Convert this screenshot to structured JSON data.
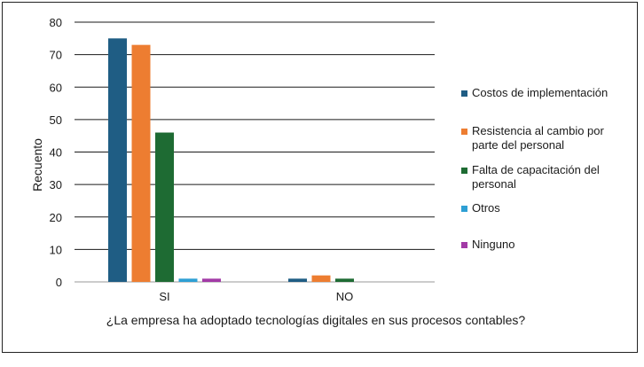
{
  "chart_data": {
    "type": "bar",
    "categories": [
      "SI",
      "NO"
    ],
    "series": [
      {
        "name": "Costos de implementación",
        "color": "#1f5d84",
        "values": [
          75,
          1
        ]
      },
      {
        "name": "Resistencia al cambio por parte del personal",
        "color": "#ed7d31",
        "values": [
          73,
          2
        ]
      },
      {
        "name": "Falta de capacitación del personal",
        "color": "#1e6b33",
        "values": [
          46,
          1
        ]
      },
      {
        "name": "Otros",
        "color": "#2e9fd4",
        "values": [
          1,
          0
        ]
      },
      {
        "name": "Ninguno",
        "color": "#a23aa6",
        "values": [
          1,
          0
        ]
      }
    ],
    "xlabel": "¿La empresa ha adoptado tecnologías digitales en sus procesos contables?",
    "ylabel": "Recuento",
    "ylim": [
      0,
      80
    ],
    "yticks": [
      0,
      10,
      20,
      30,
      40,
      50,
      60,
      70,
      80
    ],
    "grid": true,
    "legend_position": "right"
  }
}
